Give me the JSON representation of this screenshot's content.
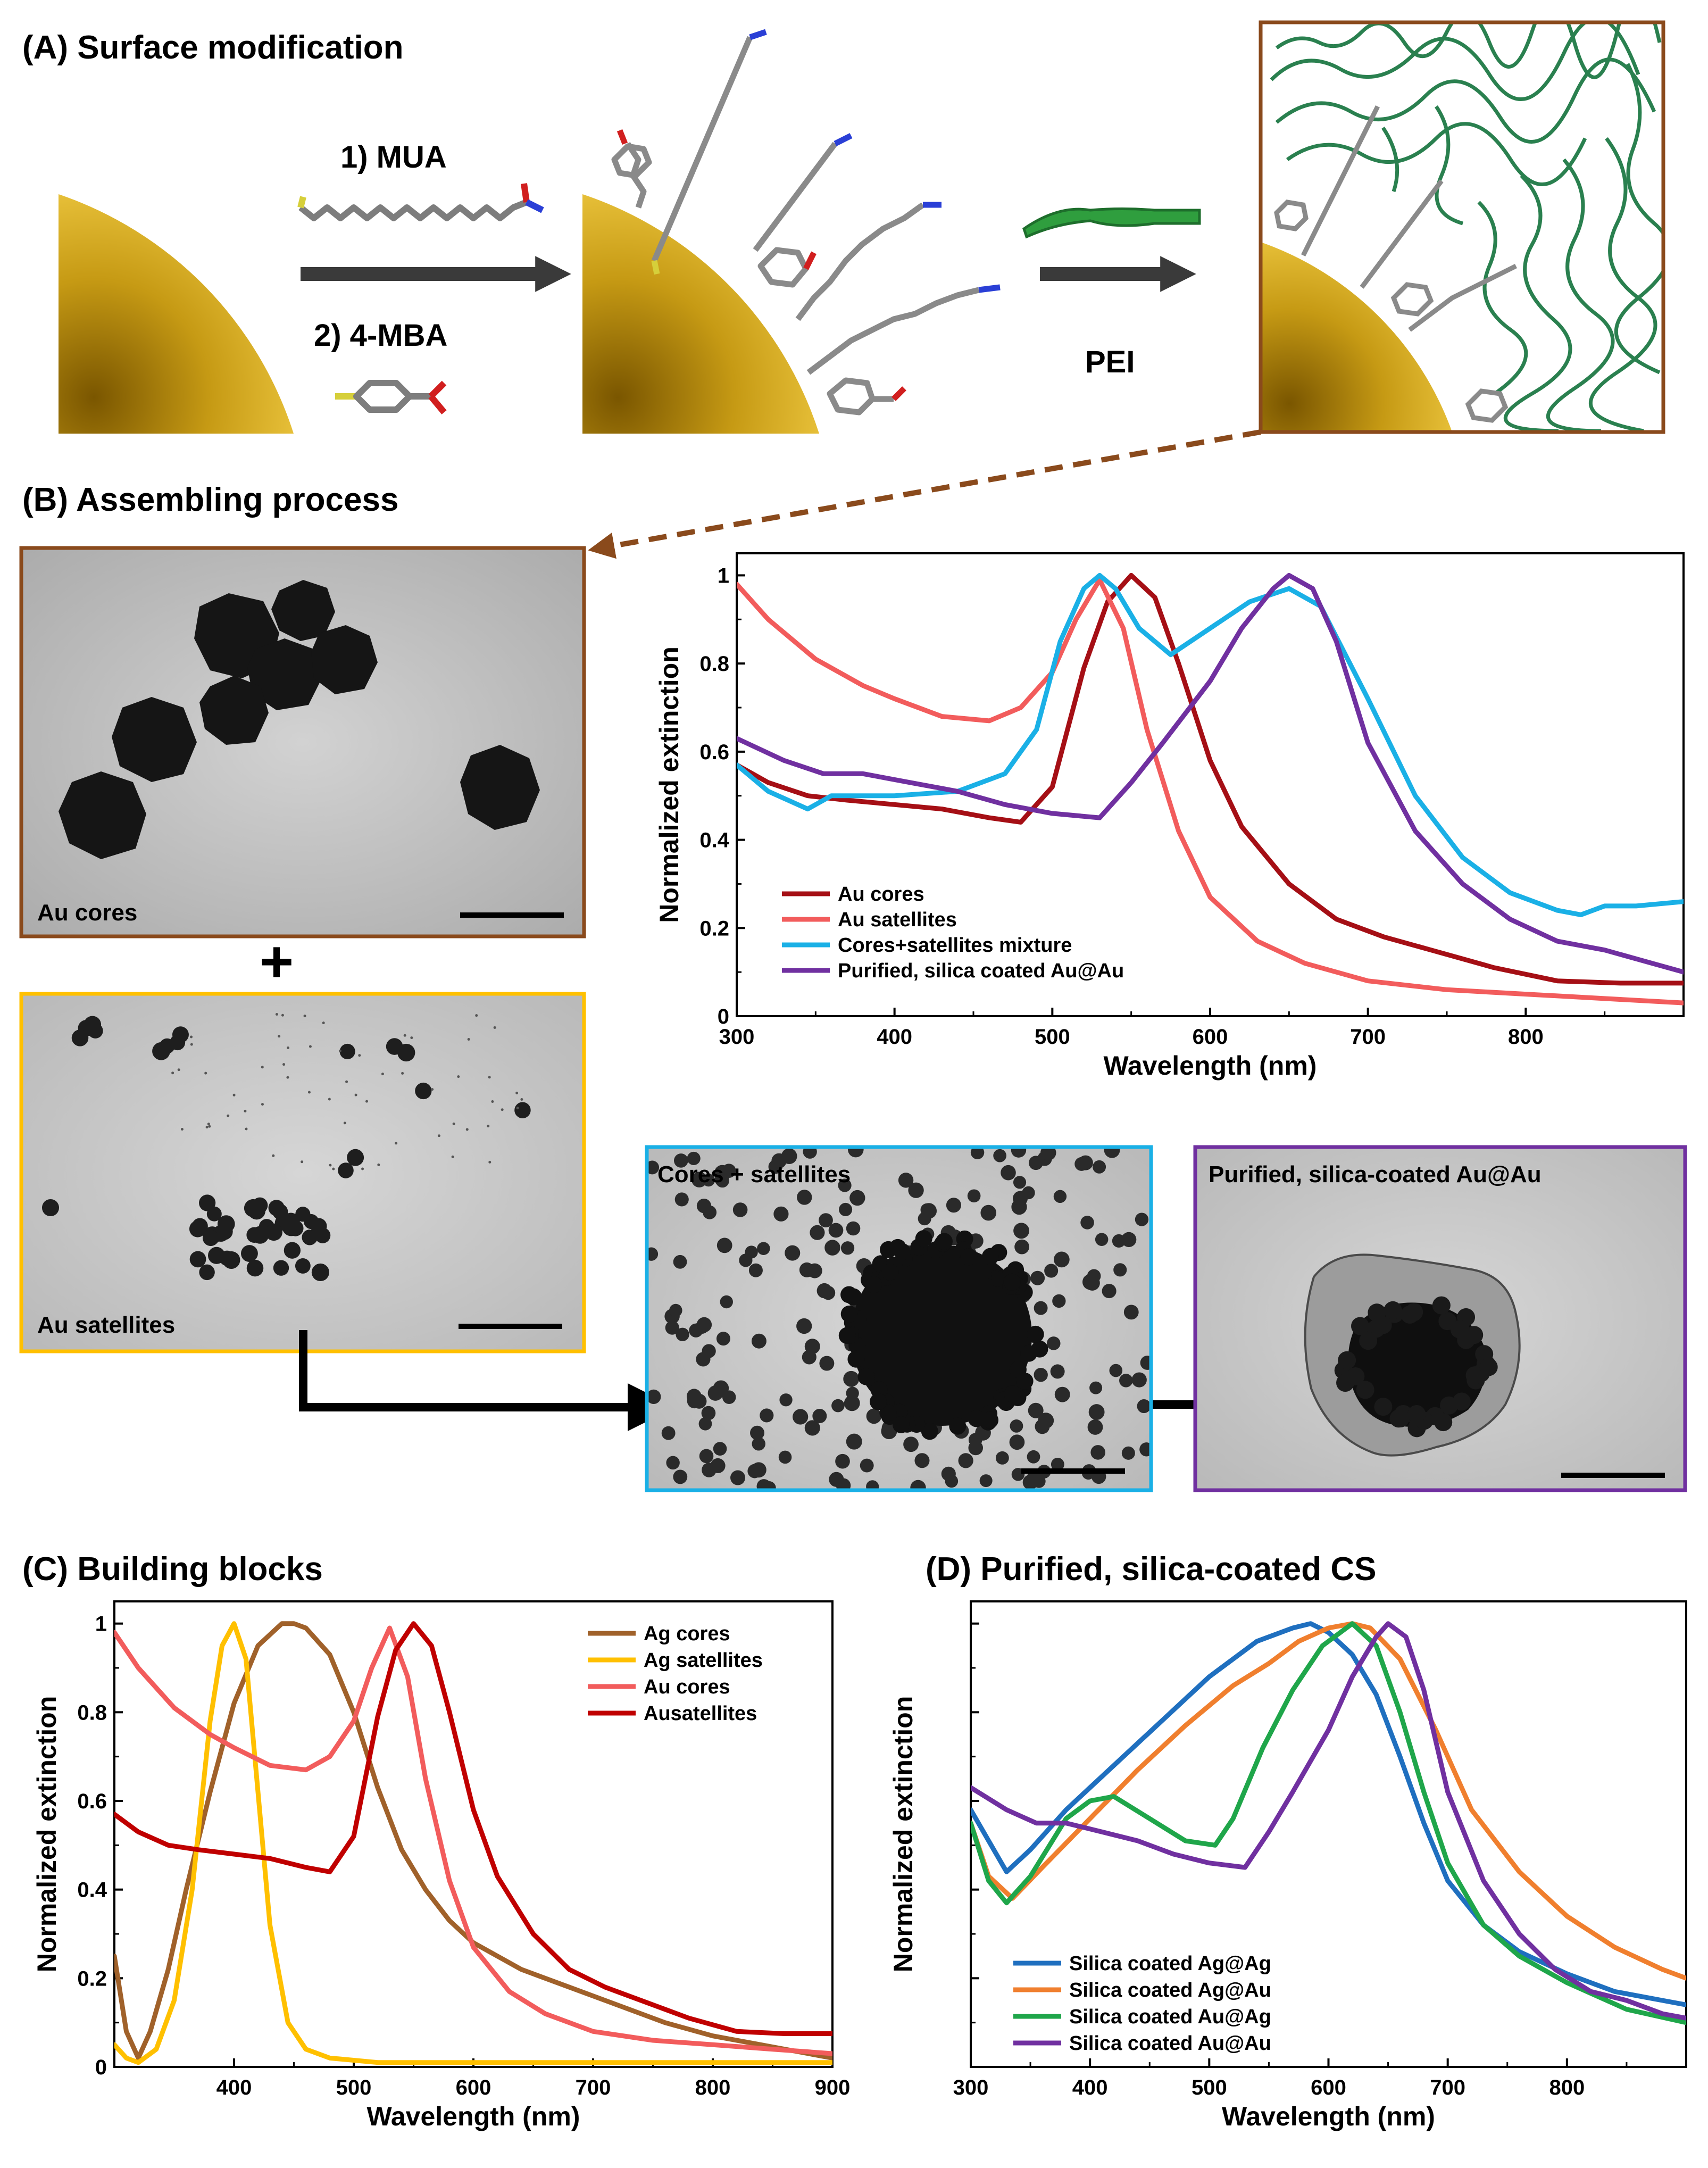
{
  "panel_a": {
    "title": "(A) Surface modification",
    "step1": "1) MUA",
    "step2": "2) 4-MBA",
    "pei": "PEI"
  },
  "panel_b": {
    "title": "(B) Assembling process",
    "tem_au_cores": "Au cores",
    "tem_au_satellites": "Au satellites",
    "tem_mixture": "Cores + satellites",
    "tem_purified": "Purified, silica-coated Au@Au",
    "plus": "+"
  },
  "panel_c": {
    "title": "(C) Building blocks"
  },
  "panel_d": {
    "title": "(D) Purified, silica-coated CS"
  },
  "chart_data": [
    {
      "id": "B",
      "type": "line",
      "xlabel": "Wavelength (nm)",
      "ylabel": "Normalized extinction",
      "xlim": [
        300,
        900
      ],
      "ylim": [
        0,
        1.05
      ],
      "xticks": [
        300,
        400,
        500,
        600,
        700,
        800
      ],
      "yticks": [
        0,
        0.2,
        0.4,
        0.6,
        0.8,
        1
      ],
      "ytick_labels": [
        "0",
        "0.2",
        "0.4",
        "0.6",
        "0.8",
        "1"
      ],
      "legend_position": "bottom-left",
      "series": [
        {
          "name": "Au cores",
          "color": "#a50f15",
          "x": [
            300,
            320,
            345,
            370,
            400,
            430,
            460,
            480,
            500,
            520,
            535,
            550,
            565,
            580,
            600,
            620,
            650,
            680,
            710,
            740,
            780,
            820,
            860,
            900
          ],
          "y": [
            0.57,
            0.53,
            0.5,
            0.49,
            0.48,
            0.47,
            0.45,
            0.44,
            0.52,
            0.79,
            0.94,
            1.0,
            0.95,
            0.8,
            0.58,
            0.43,
            0.3,
            0.22,
            0.18,
            0.15,
            0.11,
            0.08,
            0.075,
            0.075
          ]
        },
        {
          "name": "Au satellites",
          "color": "#f25c5c",
          "x": [
            300,
            320,
            350,
            380,
            400,
            430,
            460,
            480,
            500,
            515,
            530,
            545,
            560,
            580,
            600,
            630,
            660,
            700,
            750,
            800,
            850,
            900
          ],
          "y": [
            0.98,
            0.9,
            0.81,
            0.75,
            0.72,
            0.68,
            0.67,
            0.7,
            0.78,
            0.9,
            0.99,
            0.88,
            0.65,
            0.42,
            0.27,
            0.17,
            0.12,
            0.08,
            0.06,
            0.05,
            0.04,
            0.03
          ]
        },
        {
          "name": "Cores+satellites mixture",
          "color": "#1ab0e6",
          "x": [
            300,
            320,
            345,
            360,
            400,
            440,
            470,
            490,
            505,
            520,
            530,
            540,
            555,
            575,
            600,
            625,
            650,
            670,
            700,
            730,
            760,
            790,
            820,
            835,
            850,
            870,
            900
          ],
          "y": [
            0.57,
            0.51,
            0.47,
            0.5,
            0.5,
            0.51,
            0.55,
            0.65,
            0.85,
            0.97,
            1.0,
            0.97,
            0.88,
            0.82,
            0.88,
            0.94,
            0.97,
            0.93,
            0.72,
            0.5,
            0.36,
            0.28,
            0.24,
            0.23,
            0.25,
            0.25,
            0.26
          ]
        },
        {
          "name": "Purified, silica coated Au@Au",
          "color": "#7030a0",
          "x": [
            300,
            330,
            355,
            380,
            410,
            440,
            470,
            500,
            530,
            550,
            570,
            600,
            620,
            640,
            650,
            665,
            680,
            700,
            730,
            760,
            790,
            820,
            850,
            880,
            900
          ],
          "y": [
            0.63,
            0.58,
            0.55,
            0.55,
            0.53,
            0.51,
            0.48,
            0.46,
            0.45,
            0.53,
            0.62,
            0.76,
            0.88,
            0.97,
            1.0,
            0.97,
            0.85,
            0.62,
            0.42,
            0.3,
            0.22,
            0.17,
            0.15,
            0.12,
            0.1
          ]
        }
      ]
    },
    {
      "id": "C",
      "type": "line",
      "xlabel": "Wavelength (nm)",
      "ylabel": "Normalized extinction",
      "xlim": [
        300,
        900
      ],
      "ylim": [
        0,
        1.05
      ],
      "xticks": [
        400,
        500,
        600,
        700,
        800,
        900
      ],
      "yticks": [
        0,
        0.2,
        0.4,
        0.6,
        0.8,
        1
      ],
      "ytick_labels": [
        "0",
        "0.2",
        "0.4",
        "0.6",
        "0.8",
        "1"
      ],
      "legend_position": "top-right",
      "series": [
        {
          "name": "Ag cores",
          "color": "#a0612a",
          "x": [
            300,
            310,
            320,
            330,
            345,
            360,
            380,
            400,
            420,
            440,
            450,
            460,
            480,
            500,
            520,
            540,
            560,
            580,
            600,
            640,
            680,
            720,
            760,
            800,
            840,
            880,
            900
          ],
          "y": [
            0.25,
            0.08,
            0.02,
            0.08,
            0.22,
            0.4,
            0.62,
            0.82,
            0.95,
            1.0,
            1.0,
            0.99,
            0.93,
            0.8,
            0.63,
            0.49,
            0.4,
            0.33,
            0.28,
            0.22,
            0.18,
            0.14,
            0.1,
            0.07,
            0.05,
            0.03,
            0.02
          ]
        },
        {
          "name": "Ag satellites",
          "color": "#ffc000",
          "x": [
            300,
            310,
            320,
            335,
            350,
            365,
            380,
            390,
            400,
            410,
            420,
            430,
            445,
            460,
            480,
            520,
            600,
            700,
            800,
            900
          ],
          "y": [
            0.05,
            0.02,
            0.01,
            0.04,
            0.15,
            0.4,
            0.78,
            0.95,
            1.0,
            0.92,
            0.62,
            0.32,
            0.1,
            0.04,
            0.02,
            0.01,
            0.01,
            0.01,
            0.01,
            0.01
          ]
        },
        {
          "name": "Au cores",
          "color": "#f25c5c",
          "x": [
            300,
            320,
            350,
            380,
            400,
            430,
            460,
            480,
            500,
            515,
            530,
            545,
            560,
            580,
            600,
            630,
            660,
            700,
            750,
            800,
            850,
            900
          ],
          "y": [
            0.98,
            0.9,
            0.81,
            0.75,
            0.72,
            0.68,
            0.67,
            0.7,
            0.78,
            0.9,
            0.99,
            0.88,
            0.65,
            0.42,
            0.27,
            0.17,
            0.12,
            0.08,
            0.06,
            0.05,
            0.04,
            0.03
          ]
        },
        {
          "name": "Ausatellites",
          "color": "#c00000",
          "x": [
            300,
            320,
            345,
            370,
            400,
            430,
            460,
            480,
            500,
            520,
            535,
            550,
            565,
            580,
            600,
            620,
            650,
            680,
            710,
            740,
            780,
            820,
            860,
            900
          ],
          "y": [
            0.57,
            0.53,
            0.5,
            0.49,
            0.48,
            0.47,
            0.45,
            0.44,
            0.52,
            0.79,
            0.94,
            1.0,
            0.95,
            0.8,
            0.58,
            0.43,
            0.3,
            0.22,
            0.18,
            0.15,
            0.11,
            0.08,
            0.075,
            0.075
          ]
        }
      ]
    },
    {
      "id": "D",
      "type": "line",
      "xlabel": "Wavelength (nm)",
      "ylabel": "Normalized extinction",
      "xlim": [
        300,
        900
      ],
      "ylim": [
        0,
        1.05
      ],
      "xticks": [
        300,
        400,
        500,
        600,
        700,
        800
      ],
      "yticks": [
        0,
        0.2,
        0.4,
        0.6,
        0.8,
        1
      ],
      "ytick_labels": [
        "",
        "",
        "",
        "",
        "",
        ""
      ],
      "legend_position": "bottom-left",
      "series": [
        {
          "name": "Silica coated Ag@Ag",
          "color": "#1f6fbf",
          "x": [
            300,
            315,
            330,
            350,
            380,
            420,
            460,
            500,
            540,
            570,
            585,
            600,
            620,
            640,
            660,
            680,
            700,
            730,
            760,
            800,
            840,
            880,
            900
          ],
          "y": [
            0.58,
            0.51,
            0.44,
            0.49,
            0.58,
            0.68,
            0.78,
            0.88,
            0.96,
            0.99,
            1.0,
            0.98,
            0.93,
            0.84,
            0.7,
            0.55,
            0.42,
            0.32,
            0.26,
            0.21,
            0.17,
            0.15,
            0.14
          ]
        },
        {
          "name": "Silica coated Ag@Au",
          "color": "#f07f2e",
          "x": [
            300,
            315,
            335,
            360,
            400,
            440,
            480,
            520,
            550,
            575,
            600,
            620,
            635,
            660,
            690,
            720,
            760,
            800,
            840,
            880,
            900
          ],
          "y": [
            0.55,
            0.43,
            0.38,
            0.45,
            0.56,
            0.67,
            0.77,
            0.86,
            0.91,
            0.96,
            0.99,
            1.0,
            0.99,
            0.92,
            0.76,
            0.58,
            0.44,
            0.34,
            0.27,
            0.22,
            0.2
          ]
        },
        {
          "name": "Silica coated Au@Ag",
          "color": "#1fa64a",
          "x": [
            300,
            315,
            330,
            350,
            380,
            400,
            420,
            450,
            480,
            505,
            520,
            545,
            570,
            595,
            620,
            640,
            660,
            680,
            700,
            730,
            760,
            800,
            850,
            900
          ],
          "y": [
            0.55,
            0.42,
            0.37,
            0.43,
            0.56,
            0.6,
            0.61,
            0.56,
            0.51,
            0.5,
            0.56,
            0.72,
            0.85,
            0.95,
            1.0,
            0.95,
            0.8,
            0.62,
            0.46,
            0.32,
            0.25,
            0.19,
            0.13,
            0.1
          ]
        },
        {
          "name": "Silica coated Au@Au",
          "color": "#7030a0",
          "x": [
            300,
            330,
            355,
            380,
            410,
            440,
            470,
            500,
            530,
            550,
            570,
            600,
            620,
            640,
            650,
            665,
            680,
            700,
            730,
            760,
            790,
            820,
            850,
            880,
            900
          ],
          "y": [
            0.63,
            0.58,
            0.55,
            0.55,
            0.53,
            0.51,
            0.48,
            0.46,
            0.45,
            0.53,
            0.62,
            0.76,
            0.88,
            0.97,
            1.0,
            0.97,
            0.85,
            0.62,
            0.42,
            0.3,
            0.22,
            0.17,
            0.15,
            0.12,
            0.11
          ]
        }
      ]
    }
  ]
}
